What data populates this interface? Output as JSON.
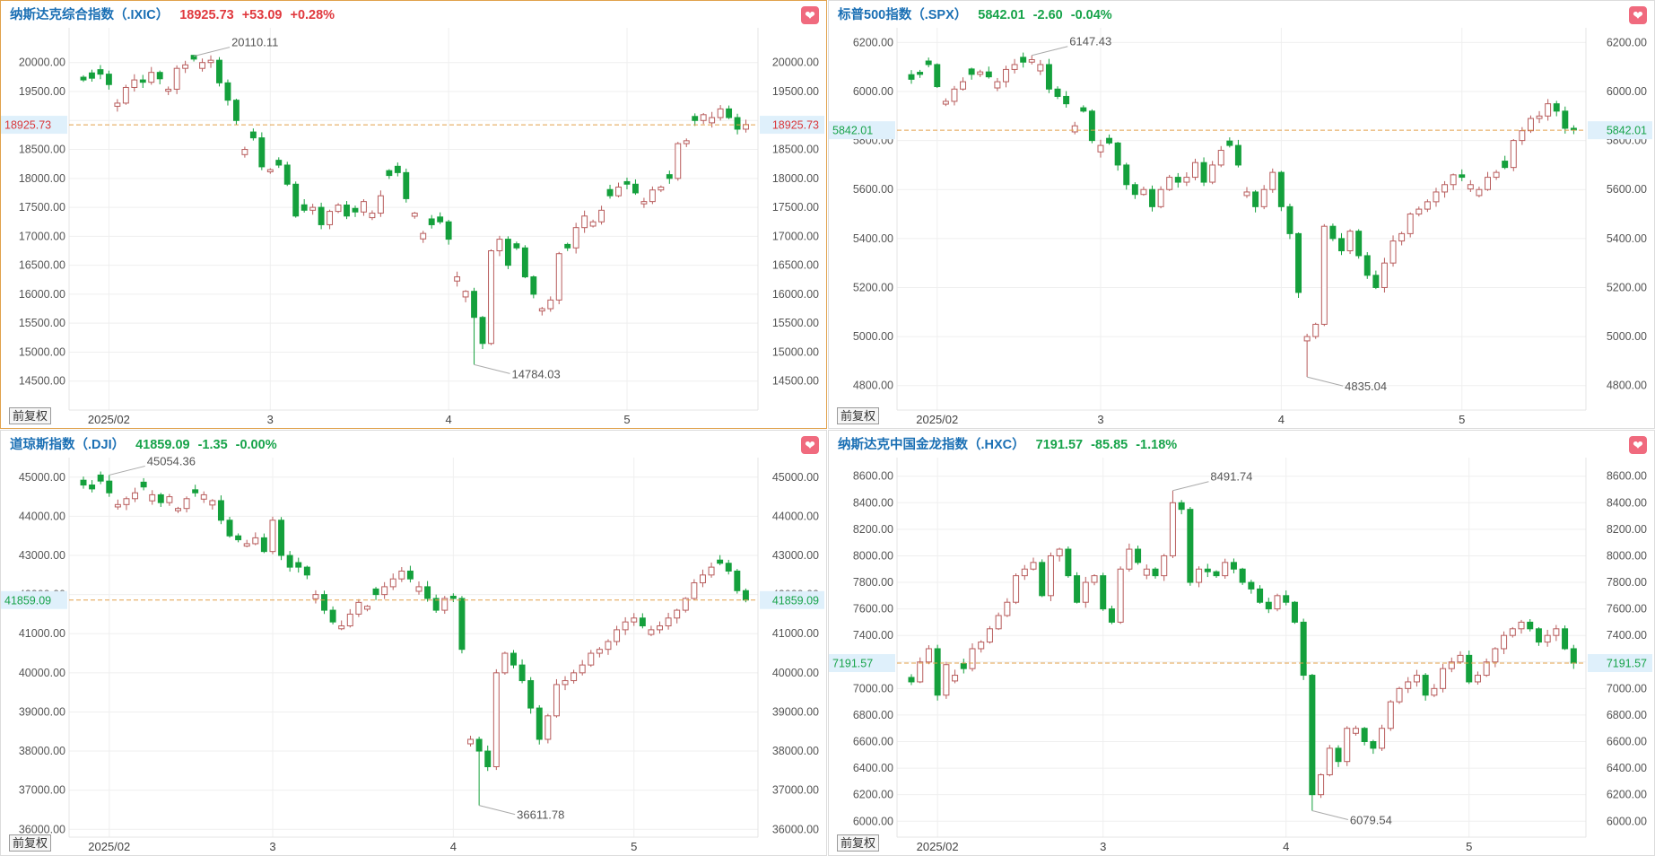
{
  "colors": {
    "up": "#e0393e",
    "down": "#17a34a",
    "up_candle": "#b85c5c",
    "down_candle": "#14a03c",
    "guide": "#e3a04a",
    "current_bg": "#dff0fb"
  },
  "panels": [
    {
      "name": "纳斯达克综合指数（.IXIC）",
      "price": "18925.73",
      "change": "+53.09",
      "change_pct": "+0.28%",
      "direction": "up",
      "active": true,
      "adj_label": "前复权",
      "current_label": "18925.73",
      "high_label": "20110.11",
      "low_label": "14784.03",
      "chart_data": {
        "type": "candlestick",
        "ylim": [
          14000,
          20600
        ],
        "current": 18925.73,
        "yticks": [
          20000,
          19500,
          19000,
          18500,
          18000,
          17500,
          17000,
          16500,
          16000,
          15500,
          15000,
          14500
        ],
        "ytick_labels": [
          "20000.00",
          "19500.00",
          "19000.00",
          "18500.00",
          "18000.00",
          "17500.00",
          "17000.00",
          "16500.00",
          "16000.00",
          "15500.00",
          "15000.00",
          "14500.00"
        ],
        "xticks": [
          {
            "label": "2025/02",
            "index": 3
          },
          {
            "label": "3",
            "index": 22
          },
          {
            "label": "4",
            "index": 43
          },
          {
            "label": "5",
            "index": 64
          }
        ],
        "high": 20110.11,
        "high_index": 13,
        "low": 14784.03,
        "low_index": 46,
        "points": [
          19700,
          19730,
          19800,
          19620,
          19300,
          19570,
          19700,
          19660,
          19830,
          19720,
          19540,
          19900,
          19960,
          20060,
          20000,
          20040,
          19650,
          19350,
          19000,
          18500,
          18700,
          18200,
          18150,
          18230,
          17900,
          17350,
          17450,
          17500,
          17200,
          17430,
          17540,
          17350,
          17420,
          17600,
          17400,
          17700,
          18050,
          18100,
          17650,
          17400,
          17050,
          17200,
          17250,
          16950,
          16300,
          16050,
          15600,
          15150,
          16750,
          16950,
          16500,
          16800,
          16300,
          16000,
          15750,
          15900,
          16700,
          16800,
          17150,
          17350,
          17250,
          17450,
          17700,
          17850,
          17900,
          17750,
          17600,
          17800,
          17850,
          18000,
          18600,
          18650,
          19000,
          19100,
          19050,
          19200,
          19050,
          18850,
          18930
        ],
        "up_days": [
          4,
          5,
          6,
          8,
          10,
          11,
          12,
          14,
          15,
          19,
          22,
          27,
          29,
          30,
          33,
          34,
          35,
          39,
          40,
          44,
          45,
          48,
          49,
          54,
          55,
          56,
          58,
          59,
          60,
          61,
          63,
          66,
          67,
          68,
          70,
          71,
          73,
          74,
          75,
          78
        ]
      }
    },
    {
      "name": "标普500指数（.SPX）",
      "price": "5842.01",
      "change": "-2.60",
      "change_pct": "-0.04%",
      "direction": "down",
      "active": false,
      "adj_label": "前复权",
      "current_label": "5842.01",
      "high_label": "6147.43",
      "low_label": "4835.04",
      "chart_data": {
        "type": "candlestick",
        "ylim": [
          4700,
          6260
        ],
        "current": 5842.01,
        "yticks": [
          6200,
          6000,
          5800,
          5600,
          5400,
          5200,
          5000,
          4800
        ],
        "ytick_labels": [
          "6200.00",
          "6000.00",
          "5800.00",
          "5600.00",
          "5400.00",
          "5200.00",
          "5000.00",
          "4800.00"
        ],
        "xticks": [
          {
            "label": "2025/02",
            "index": 3
          },
          {
            "label": "3",
            "index": 22
          },
          {
            "label": "4",
            "index": 43
          },
          {
            "label": "5",
            "index": 64
          }
        ],
        "high": 6147.43,
        "high_index": 14,
        "low": 4835.04,
        "low_index": 46,
        "points": [
          6050,
          6070,
          6110,
          6020,
          5960,
          6010,
          6040,
          6070,
          6080,
          6060,
          6040,
          6090,
          6110,
          6120,
          6130,
          6110,
          6010,
          5980,
          5950,
          5860,
          5920,
          5800,
          5780,
          5790,
          5700,
          5620,
          5580,
          5600,
          5530,
          5600,
          5650,
          5630,
          5650,
          5710,
          5630,
          5700,
          5760,
          5780,
          5700,
          5590,
          5530,
          5600,
          5670,
          5530,
          5420,
          5180,
          5000,
          5050,
          5450,
          5400,
          5350,
          5430,
          5330,
          5250,
          5200,
          5300,
          5390,
          5420,
          5500,
          5520,
          5550,
          5590,
          5620,
          5660,
          5650,
          5620,
          5600,
          5650,
          5670,
          5690,
          5800,
          5840,
          5890,
          5900,
          5950,
          5920,
          5850,
          5843
        ],
        "up_days": [
          4,
          5,
          6,
          8,
          10,
          11,
          12,
          14,
          15,
          19,
          22,
          27,
          29,
          30,
          32,
          33,
          35,
          36,
          39,
          41,
          42,
          46,
          47,
          48,
          51,
          55,
          56,
          57,
          58,
          59,
          60,
          61,
          62,
          63,
          65,
          66,
          67,
          68,
          70,
          71,
          72,
          73,
          74
        ]
      }
    },
    {
      "name": "道琼斯指数（.DJI）",
      "price": "41859.09",
      "change": "-1.35",
      "change_pct": "-0.00%",
      "direction": "down",
      "active": false,
      "adj_label": "前复权",
      "current_label": "41859.09",
      "high_label": "45054.36",
      "low_label": "36611.78",
      "chart_data": {
        "type": "candlestick",
        "ylim": [
          35800,
          45500
        ],
        "current": 41859.09,
        "yticks": [
          45000,
          44000,
          43000,
          42000,
          41000,
          40000,
          39000,
          38000,
          37000,
          36000
        ],
        "ytick_labels": [
          "45000.00",
          "44000.00",
          "43000.00",
          "42000.00",
          "41000.00",
          "40000.00",
          "39000.00",
          "38000.00",
          "37000.00",
          "36000.00"
        ],
        "xticks": [
          {
            "label": "2025/02",
            "index": 3
          },
          {
            "label": "3",
            "index": 22
          },
          {
            "label": "4",
            "index": 43
          },
          {
            "label": "5",
            "index": 64
          }
        ],
        "high": 45054.36,
        "high_index": 3,
        "low": 36611.78,
        "low_index": 46,
        "points": [
          44800,
          44700,
          44900,
          44600,
          44300,
          44450,
          44600,
          44750,
          44550,
          44350,
          44500,
          44200,
          44450,
          44600,
          44550,
          44400,
          43900,
          43500,
          43400,
          43300,
          43450,
          43100,
          43900,
          43000,
          42700,
          42700,
          42500,
          42000,
          41600,
          41300,
          41200,
          41500,
          41800,
          41700,
          42000,
          42200,
          42400,
          42600,
          42400,
          42200,
          41900,
          41600,
          41900,
          41900,
          40600,
          38300,
          38000,
          37600,
          40000,
          40500,
          40200,
          39800,
          39100,
          38300,
          38900,
          39700,
          39800,
          40000,
          40200,
          40500,
          40600,
          40800,
          41100,
          41300,
          41400,
          41200,
          41100,
          41200,
          41400,
          41600,
          41900,
          42300,
          42500,
          42700,
          42800,
          42600,
          42100,
          41860
        ],
        "up_days": [
          4,
          5,
          6,
          8,
          10,
          11,
          12,
          14,
          15,
          19,
          20,
          22,
          27,
          30,
          31,
          32,
          33,
          35,
          36,
          37,
          39,
          42,
          45,
          48,
          49,
          54,
          55,
          56,
          57,
          58,
          59,
          60,
          61,
          62,
          63,
          64,
          66,
          67,
          68,
          69,
          70,
          71,
          72,
          73
        ]
      }
    },
    {
      "name": "纳斯达克中国金龙指数（.HXC）",
      "price": "7191.57",
      "change": "-85.85",
      "change_pct": "-1.18%",
      "direction": "down",
      "active": false,
      "adj_label": "前复权",
      "current_label": "7191.57",
      "high_label": "8491.74",
      "low_label": "6079.54",
      "chart_data": {
        "type": "candlestick",
        "ylim": [
          5880,
          8740
        ],
        "current": 7191.57,
        "yticks": [
          8600,
          8400,
          8200,
          8000,
          7800,
          7600,
          7400,
          7200,
          7000,
          6800,
          6600,
          6400,
          6200,
          6000
        ],
        "ytick_labels": [
          "8600.00",
          "8400.00",
          "8200.00",
          "8000.00",
          "7800.00",
          "7600.00",
          "7400.00",
          "7200.00",
          "7000.00",
          "6800.00",
          "6600.00",
          "6400.00",
          "6200.00",
          "6000.00"
        ],
        "xticks": [
          {
            "label": "2025/02",
            "index": 3
          },
          {
            "label": "3",
            "index": 22
          },
          {
            "label": "4",
            "index": 43
          },
          {
            "label": "5",
            "index": 64
          }
        ],
        "high": 8491.74,
        "high_index": 30,
        "low": 6079.54,
        "low_index": 46,
        "points": [
          7050,
          7200,
          7300,
          6950,
          7180,
          7100,
          7150,
          7300,
          7350,
          7450,
          7550,
          7650,
          7850,
          7900,
          7950,
          7700,
          8000,
          8050,
          7850,
          7650,
          7800,
          7850,
          7600,
          7500,
          7900,
          8050,
          7950,
          7900,
          7850,
          8000,
          8400,
          8350,
          7800,
          7900,
          7880,
          7850,
          7950,
          7900,
          7800,
          7750,
          7650,
          7600,
          7700,
          7650,
          7500,
          7100,
          6200,
          6350,
          6550,
          6450,
          6700,
          6700,
          6600,
          6550,
          6700,
          6900,
          7000,
          7050,
          7100,
          6950,
          7000,
          7150,
          7200,
          7250,
          7050,
          7100,
          7200,
          7300,
          7400,
          7450,
          7500,
          7450,
          7350,
          7400,
          7450,
          7300,
          7191
        ],
        "up_days": [
          1,
          2,
          4,
          5,
          7,
          8,
          9,
          10,
          11,
          12,
          13,
          14,
          16,
          17,
          20,
          21,
          24,
          25,
          27,
          29,
          30,
          33,
          36,
          42,
          47,
          48,
          50,
          51,
          54,
          55,
          56,
          57,
          58,
          60,
          61,
          62,
          63,
          65,
          66,
          67,
          68,
          69,
          70,
          73,
          74
        ]
      }
    }
  ]
}
